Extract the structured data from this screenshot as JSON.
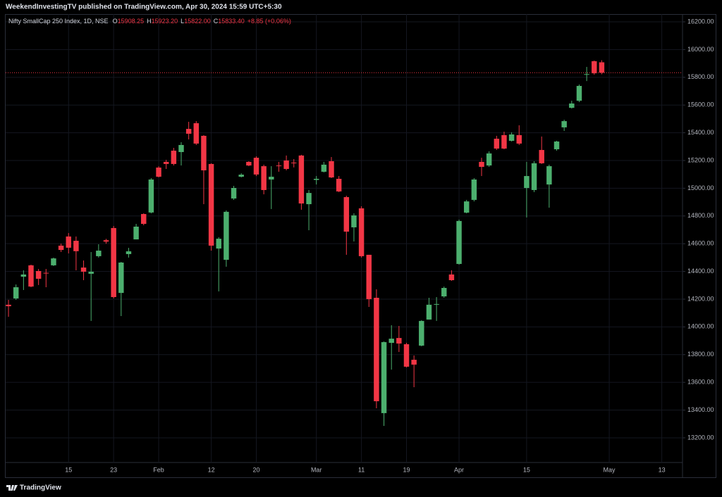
{
  "chart_data": {
    "type": "candlestick",
    "header": "WeekendInvestingTV published on TradingView.com, Apr 30, 2024 15:59 UTC+5:30",
    "title": "Nifty SmallCap 250 Index, 1D, NSE",
    "legend": {
      "items": [
        {
          "key": "O",
          "value": "15908.25"
        },
        {
          "key": "H",
          "value": "15923.20"
        },
        {
          "key": "L",
          "value": "15822.00"
        },
        {
          "key": "C",
          "value": "15833.40"
        }
      ],
      "change": "+8.85 (+0.06%)"
    },
    "brand": "TradingView",
    "up_color": "#4caf6e",
    "down_color": "#f23645",
    "open": [
      14160,
      14205,
      14362,
      14444,
      14403,
      14390,
      14444,
      14586,
      14652,
      14621,
      14428,
      14383,
      14510,
      14625,
      14713,
      14245,
      14525,
      14631,
      14814,
      14825,
      15149,
      15190,
      15271,
      15261,
      15428,
      15469,
      15378,
      15175,
      14565,
      14484,
      14926,
      15083,
      15190,
      15220,
      15159,
      15063,
      15164,
      15200,
      15185,
      15236,
      14885,
      15060,
      15119,
      15195,
      15068,
      14936,
      14718,
      14855,
      14520,
      14210,
      13378,
      13885,
      13920,
      13875,
      13763,
      13865,
      14053,
      14160,
      14220,
      14378,
      14454,
      14824,
      14916,
      15190,
      15164,
      15357,
      15383,
      15342,
      15383,
      15002,
      14987,
      15276,
      15027,
      15281,
      15439,
      15580,
      15631,
      15818,
      15916,
      15908.25
    ],
    "high": [
      14195,
      14306,
      14408,
      14449,
      14418,
      14418,
      14500,
      14601,
      14677,
      14652,
      14479,
      14540,
      14596,
      14635,
      14728,
      14469,
      14570,
      14743,
      14819,
      15073,
      15159,
      15205,
      15291,
      15332,
      15479,
      15484,
      15383,
      15180,
      14647,
      14840,
      15017,
      15108,
      15195,
      15230,
      15170,
      15159,
      15190,
      15236,
      15210,
      15241,
      14987,
      15088,
      15190,
      15225,
      15088,
      14946,
      14819,
      14870,
      14520,
      14271,
      13895,
      14012,
      14007,
      13885,
      13794,
      14048,
      14210,
      14215,
      14291,
      14408,
      14774,
      14916,
      15073,
      15220,
      15266,
      15378,
      15408,
      15403,
      15454,
      15190,
      15195,
      15373,
      15170,
      15342,
      15494,
      15631,
      15748,
      15875,
      15921,
      15923.2
    ],
    "low": [
      14073,
      14195,
      14266,
      14286,
      14302,
      14286,
      14439,
      14540,
      14530,
      14408,
      14337,
      14043,
      14500,
      14600,
      14205,
      14078,
      14500,
      14631,
      14733,
      14819,
      15078,
      15139,
      15164,
      15164,
      15352,
      15312,
      14885,
      14550,
      14256,
      14434,
      14916,
      15078,
      15159,
      15088,
      14956,
      14850,
      15119,
      15129,
      15150,
      14845,
      14697,
      15027,
      15114,
      15073,
      14972,
      14520,
      14616,
      14500,
      14144,
      13413,
      13286,
      13692,
      13819,
      13708,
      13565,
      13860,
      14053,
      14043,
      14210,
      14332,
      14449,
      14819,
      14905,
      15088,
      15154,
      15276,
      15281,
      15337,
      15312,
      14789,
      14972,
      15175,
      14860,
      15271,
      15413,
      15575,
      15621,
      15773,
      15819,
      15822
    ],
    "close": [
      14149,
      14286,
      14378,
      14291,
      14347,
      14385,
      14494,
      14555,
      14571,
      14546,
      14398,
      14398,
      14550,
      14615,
      14215,
      14464,
      14545,
      14723,
      14743,
      15063,
      15083,
      15175,
      15175,
      15312,
      15393,
      15322,
      15129,
      14586,
      14636,
      14830,
      15002,
      15098,
      15164,
      15099,
      14987,
      15083,
      15159,
      15139,
      15180,
      14890,
      14966,
      15068,
      15170,
      15078,
      14977,
      14687,
      14804,
      14510,
      14200,
      13464,
      13890,
      13915,
      13880,
      13713,
      13728,
      14043,
      14160,
      14165,
      14281,
      14337,
      14764,
      14905,
      15063,
      15154,
      15251,
      15286,
      15286,
      15388,
      15322,
      15088,
      15180,
      15180,
      15159,
      15337,
      15484,
      15611,
      15738,
      15823,
      15829,
      15833.4
    ],
    "xlim": [
      -0.38,
      89.76
    ],
    "xticks": [
      {
        "value": 8,
        "label": "15"
      },
      {
        "value": 14,
        "label": "23"
      },
      {
        "value": 20,
        "label": "Feb"
      },
      {
        "value": 27,
        "label": "12"
      },
      {
        "value": 33,
        "label": "20"
      },
      {
        "value": 41,
        "label": "Mar"
      },
      {
        "value": 47,
        "label": "11"
      },
      {
        "value": 53,
        "label": "19"
      },
      {
        "value": 60,
        "label": "Apr"
      },
      {
        "value": 69,
        "label": "15"
      },
      {
        "value": 80,
        "label": "May"
      },
      {
        "value": 87,
        "label": "13"
      }
    ],
    "ylim": [
      13022,
      16256
    ],
    "yticks": [
      {
        "value": 13200,
        "label": "13200.00"
      },
      {
        "value": 13400,
        "label": "13400.00"
      },
      {
        "value": 13600,
        "label": "13600.00"
      },
      {
        "value": 13800,
        "label": "13800.00"
      },
      {
        "value": 14000,
        "label": "14000.00"
      },
      {
        "value": 14200,
        "label": "14200.00"
      },
      {
        "value": 14400,
        "label": "14400.00"
      },
      {
        "value": 14600,
        "label": "14600.00"
      },
      {
        "value": 14800,
        "label": "14800.00"
      },
      {
        "value": 15000,
        "label": "15000.00"
      },
      {
        "value": 15200,
        "label": "15200.00"
      },
      {
        "value": 15400,
        "label": "15400.00"
      },
      {
        "value": 15600,
        "label": "15600.00"
      },
      {
        "value": 15800,
        "label": "15800.00"
      },
      {
        "value": 16000,
        "label": "16000.00"
      },
      {
        "value": 16200,
        "label": "16200.00"
      }
    ],
    "grid": true
  }
}
